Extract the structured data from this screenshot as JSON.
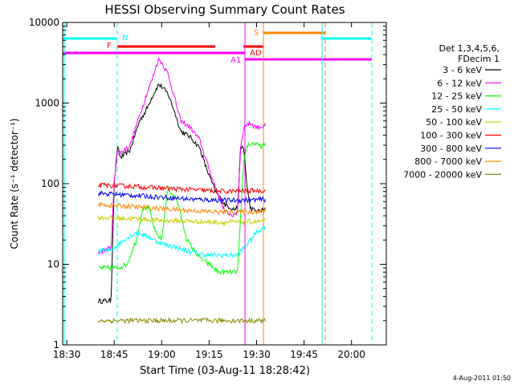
{
  "chart_data": {
    "type": "line",
    "title": "HESSI Observing Summary Count Rates",
    "xlabel": "Start Time (03-Aug-11 18:28:42)",
    "ylabel": "Count Rate (s⁻¹ detector⁻¹)",
    "yscale": "log",
    "ylim": [
      1,
      10000
    ],
    "xlim": [
      "18:28:42",
      "20:11:00"
    ],
    "grid": false,
    "legend_position": "right",
    "x_ticks": [
      "18:30",
      "18:45",
      "19:00",
      "19:15",
      "19:30",
      "19:45",
      "20:00"
    ],
    "y_ticks": [
      "1",
      "10",
      "100",
      "1000",
      "10000"
    ],
    "legend_title": [
      "Det 1,3,4,5,6,",
      "FDecim 1"
    ],
    "series": [
      {
        "name": "3 - 6 keV",
        "color": "#000000",
        "x": [
          "18:40",
          "18:44",
          "18:45",
          "18:46",
          "18:47",
          "18:50",
          "18:53",
          "18:55",
          "18:57",
          "18:59",
          "19:00",
          "19:02",
          "19:04",
          "19:06",
          "19:09",
          "19:12",
          "19:14",
          "19:17",
          "19:20",
          "19:23",
          "19:24",
          "19:25",
          "19:26",
          "19:27",
          "19:28",
          "19:30",
          "19:33"
        ],
        "y": [
          3.5,
          3.5,
          100,
          280,
          210,
          260,
          600,
          800,
          1200,
          1700,
          1600,
          1300,
          800,
          450,
          380,
          280,
          160,
          80,
          55,
          48,
          50,
          300,
          260,
          90,
          50,
          45,
          48
        ]
      },
      {
        "name": "6 - 12 keV",
        "color": "#ff00ff",
        "x": [
          "18:40",
          "18:44",
          "18:45",
          "18:46",
          "18:47",
          "18:50",
          "18:53",
          "18:55",
          "18:57",
          "18:59",
          "19:00",
          "19:02",
          "19:04",
          "19:06",
          "19:09",
          "19:12",
          "19:14",
          "19:17",
          "19:20",
          "19:23",
          "19:24",
          "19:25",
          "19:26",
          "19:27",
          "19:28",
          "19:30",
          "19:33"
        ],
        "y": [
          14,
          16,
          100,
          270,
          240,
          300,
          700,
          1200,
          2000,
          3500,
          3200,
          2300,
          1200,
          600,
          500,
          350,
          200,
          90,
          45,
          40,
          45,
          300,
          500,
          550,
          560,
          500,
          520
        ]
      },
      {
        "name": "12 - 25 keV",
        "color": "#00ff00",
        "x": [
          "18:40",
          "18:44",
          "18:46",
          "18:49",
          "18:52",
          "18:54",
          "18:56",
          "18:58",
          "19:00",
          "19:02",
          "19:05",
          "19:08",
          "19:12",
          "19:15",
          "19:18",
          "19:21",
          "19:24",
          "19:25",
          "19:26",
          "19:27",
          "19:29",
          "19:31",
          "19:33"
        ],
        "y": [
          9,
          9,
          9,
          10,
          20,
          50,
          50,
          25,
          20,
          90,
          60,
          20,
          12,
          10,
          8,
          8,
          8,
          40,
          200,
          300,
          320,
          290,
          300
        ]
      },
      {
        "name": "25 - 50 keV",
        "color": "#00ffff",
        "x": [
          "18:40",
          "18:44",
          "18:48",
          "18:52",
          "18:56",
          "19:00",
          "19:05",
          "19:10",
          "19:15",
          "19:20",
          "19:24",
          "19:26",
          "19:28",
          "19:30",
          "19:33"
        ],
        "y": [
          15,
          15,
          20,
          25,
          22,
          18,
          16,
          14,
          13,
          13,
          13,
          16,
          20,
          25,
          30
        ]
      },
      {
        "name": "50 - 100 keV",
        "color": "#cccc00",
        "x": [
          "18:40",
          "18:50",
          "19:00",
          "19:10",
          "19:20",
          "19:30",
          "19:33"
        ],
        "y": [
          38,
          37,
          35,
          34,
          33,
          34,
          34
        ]
      },
      {
        "name": "100 - 300 keV",
        "color": "#ff0000",
        "x": [
          "18:40",
          "18:50",
          "19:00",
          "19:10",
          "19:20",
          "19:30",
          "19:33"
        ],
        "y": [
          96,
          93,
          88,
          84,
          80,
          82,
          82
        ]
      },
      {
        "name": "300 - 800 keV",
        "color": "#0000ff",
        "x": [
          "18:40",
          "18:50",
          "19:00",
          "19:10",
          "19:20",
          "19:30",
          "19:33"
        ],
        "y": [
          76,
          72,
          68,
          64,
          62,
          63,
          64
        ]
      },
      {
        "name": "800 - 7000 keV",
        "color": "#ff8800",
        "x": [
          "18:40",
          "18:50",
          "19:00",
          "19:10",
          "19:20",
          "19:30",
          "19:33"
        ],
        "y": [
          55,
          52,
          49,
          46,
          44,
          45,
          45
        ]
      },
      {
        "name": "7000 - 20000 keV",
        "color": "#888800",
        "x": [
          "18:40",
          "19:33"
        ],
        "y": [
          2,
          2
        ]
      }
    ],
    "annotations": [
      {
        "text": "N",
        "color": "#00ffff"
      },
      {
        "text": "F",
        "color": "#ff0000"
      },
      {
        "text": "S",
        "color": "#ff8800"
      },
      {
        "text": "AD",
        "color": "#ff0000"
      },
      {
        "text": "A1",
        "color": "#ff00ff"
      }
    ],
    "footer_date": "4-Aug-2011 01:50"
  }
}
